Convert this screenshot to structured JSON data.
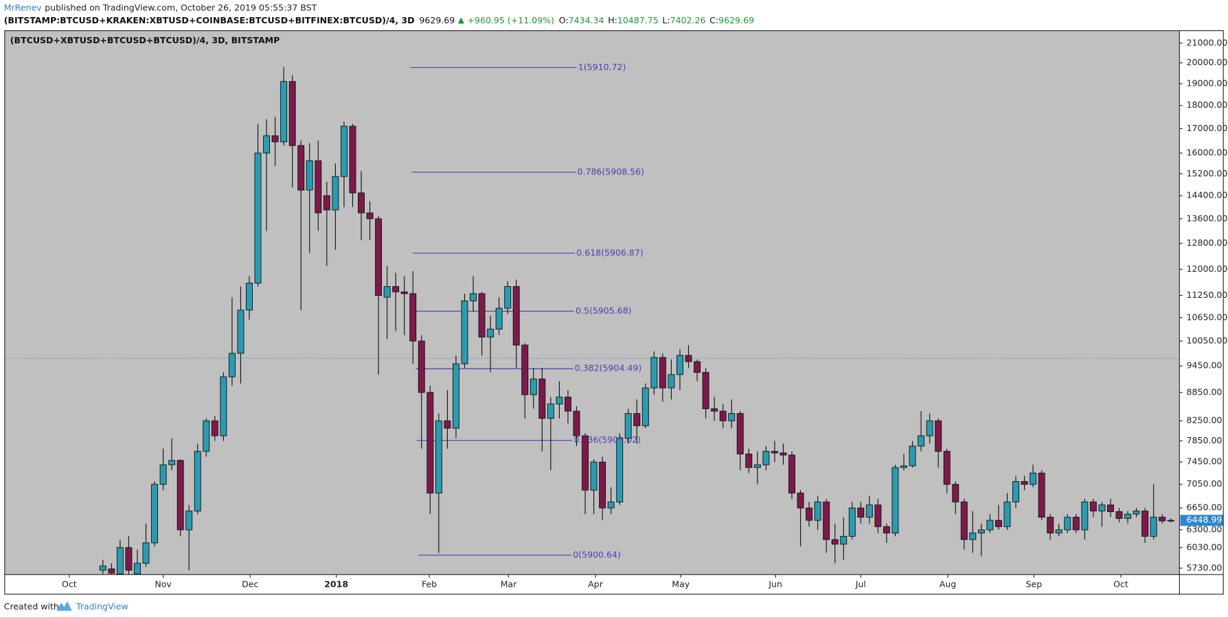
{
  "header": {
    "author": "MrRenev",
    "published": "published on TradingView.com, October 26, 2019 05:55:37 BST",
    "symbol": "(BITSTAMP:BTCUSD+KRAKEN:XBTUSD+COINBASE:BTCUSD+BITFINEX:BTCUSD)/4, 3D",
    "last": 9629.69,
    "change": "+960.95 (+11.09%)",
    "o_label": "O:",
    "open": 7434.34,
    "h_label": "H:",
    "high": 10487.75,
    "l_label": "L:",
    "low": 7402.26,
    "c_label": "C:",
    "close": 9629.69
  },
  "chart_data": {
    "type": "candlestick",
    "title": "(BTCUSD+XBTUSD+BTCUSD+BTCUSD)/4, 3D, BITSTAMP",
    "log_scale": true,
    "grid": false,
    "up_color": "#2a9bb0",
    "down_color": "#7d1a4b",
    "candles": {
      "open": [
        5700,
        5720,
        5650,
        6030,
        5650,
        5800,
        6100,
        7050,
        7400,
        7480,
        6300,
        6600,
        7650,
        8250,
        7950,
        9200,
        9750,
        10850,
        11600,
        16000,
        16700,
        16450,
        19100,
        16300,
        14600,
        15700,
        14400,
        13900,
        15100,
        17100,
        14500,
        13800,
        13600,
        11200,
        11500,
        11350,
        11300,
        10050,
        8850,
        6900,
        8250,
        8100,
        9500,
        11100,
        11300,
        10150,
        10350,
        10900,
        11500,
        9950,
        8800,
        9150,
        8300,
        8600,
        8750,
        8450,
        7950,
        6950,
        7450,
        6650,
        6750,
        7900,
        8400,
        8150,
        8950,
        9650,
        8950,
        9250,
        9700,
        9550,
        9300,
        8500,
        8450,
        8250,
        8400,
        7600,
        7350,
        7400,
        7650,
        7620,
        7580,
        6900,
        6650,
        6450,
        6750,
        6150,
        6080,
        6200,
        6650,
        6500,
        6700,
        6350,
        6250,
        7350,
        7380,
        7750,
        7950,
        8250,
        7650,
        7050,
        6750,
        6150,
        6250,
        6300,
        6450,
        6350,
        6750,
        7100,
        7050,
        7250,
        6500,
        6250,
        6300,
        6500,
        6300,
        6750,
        6600,
        6700,
        6590,
        6480,
        6550,
        6600,
        6200,
        6500,
        6450
      ],
      "high": [
        5850,
        5800,
        6150,
        6200,
        6000,
        6400,
        7100,
        7700,
        7900,
        7500,
        6700,
        7800,
        8300,
        8350,
        9300,
        11200,
        11500,
        11800,
        17200,
        17400,
        17500,
        19800,
        19400,
        16500,
        16400,
        16500,
        14900,
        15600,
        17300,
        17200,
        15300,
        14200,
        13700,
        12100,
        11900,
        11800,
        11950,
        10200,
        9000,
        8400,
        8900,
        9700,
        11300,
        11800,
        11350,
        10700,
        11200,
        11650,
        11700,
        10000,
        9400,
        9400,
        8750,
        9100,
        8900,
        8550,
        8000,
        7500,
        7550,
        7000,
        8000,
        8500,
        8700,
        9050,
        9800,
        9750,
        9600,
        9850,
        9950,
        9600,
        9400,
        8750,
        8600,
        8700,
        8450,
        7700,
        7650,
        7750,
        7850,
        7800,
        7650,
        6950,
        6750,
        6850,
        6800,
        6400,
        6500,
        6750,
        6750,
        6850,
        6800,
        6400,
        7400,
        7600,
        7850,
        8450,
        8400,
        8300,
        7700,
        7100,
        6800,
        6600,
        6400,
        6550,
        6700,
        6900,
        7200,
        7200,
        7400,
        7300,
        6550,
        6400,
        6550,
        6550,
        6800,
        6800,
        6750,
        6800,
        6650,
        6600,
        6650,
        6650,
        7050,
        6550,
        6480
      ],
      "low": [
        5650,
        5600,
        5600,
        5600,
        5550,
        5750,
        6050,
        6950,
        7300,
        6200,
        5700,
        6550,
        7550,
        7850,
        7850,
        9000,
        9050,
        10600,
        11500,
        13200,
        15500,
        16300,
        14700,
        10850,
        12500,
        13200,
        12100,
        12600,
        14000,
        14000,
        12900,
        12900,
        9250,
        10100,
        10300,
        10200,
        9500,
        7700,
        6550,
        5950,
        7700,
        7900,
        9400,
        10800,
        9700,
        9300,
        10200,
        10750,
        9400,
        8300,
        8500,
        7650,
        7300,
        8300,
        8200,
        7750,
        6550,
        6550,
        6450,
        6550,
        6700,
        7800,
        7800,
        8100,
        8800,
        8650,
        8700,
        8900,
        9400,
        9100,
        8300,
        8250,
        8100,
        8100,
        7300,
        7250,
        7050,
        7300,
        7450,
        7400,
        6800,
        6050,
        6350,
        6300,
        5950,
        5800,
        5850,
        6150,
        6400,
        6400,
        6250,
        6100,
        6200,
        7300,
        7350,
        7650,
        7800,
        7350,
        6900,
        6550,
        6000,
        5950,
        5900,
        6250,
        6300,
        6300,
        6650,
        6950,
        7000,
        6450,
        6150,
        6200,
        6250,
        6250,
        6150,
        6500,
        6350,
        6500,
        6420,
        6400,
        6500,
        6100,
        6150,
        6400,
        6420
      ],
      "close": [
        5760,
        5660,
        6030,
        5700,
        5800,
        6100,
        7050,
        7400,
        7480,
        6300,
        6600,
        7650,
        8250,
        7950,
        9200,
        9750,
        10850,
        11600,
        16000,
        16700,
        16450,
        19100,
        16300,
        14600,
        15700,
        13800,
        13900,
        15100,
        17100,
        14500,
        13800,
        13600,
        11250,
        11500,
        11350,
        11300,
        10050,
        8850,
        6900,
        8250,
        8100,
        9500,
        11100,
        11300,
        10150,
        10350,
        10900,
        11500,
        9950,
        8800,
        9150,
        8300,
        8600,
        8750,
        8450,
        7950,
        6950,
        7450,
        6650,
        6750,
        7900,
        8400,
        8150,
        8950,
        9650,
        8950,
        9250,
        9700,
        9550,
        9300,
        8500,
        8450,
        8250,
        8400,
        7600,
        7350,
        7400,
        7650,
        7620,
        7580,
        6900,
        6650,
        6450,
        6750,
        6150,
        6080,
        6200,
        6650,
        6500,
        6700,
        6350,
        6250,
        7350,
        7380,
        7750,
        7950,
        8250,
        7650,
        7050,
        6750,
        6150,
        6250,
        6300,
        6450,
        6350,
        6750,
        7100,
        7050,
        7250,
        6500,
        6250,
        6300,
        6500,
        6300,
        6750,
        6600,
        6700,
        6590,
        6480,
        6550,
        6600,
        6200,
        6500,
        6440,
        6440
      ]
    },
    "xlim": [
      -11.4,
      125
    ],
    "xticks": [
      {
        "value": -3.9,
        "label": "Oct"
      },
      {
        "value": 7,
        "label": "Nov"
      },
      {
        "value": 17.1,
        "label": "Dec"
      },
      {
        "value": 27.1,
        "label": "2018"
      },
      {
        "value": 37.9,
        "label": "Feb"
      },
      {
        "value": 47.1,
        "label": "Mar"
      },
      {
        "value": 57.2,
        "label": "Apr"
      },
      {
        "value": 67.1,
        "label": "May"
      },
      {
        "value": 78.1,
        "label": "Jun"
      },
      {
        "value": 88,
        "label": "Jul"
      },
      {
        "value": 98.1,
        "label": "Aug"
      },
      {
        "value": 108.1,
        "label": "Sep"
      },
      {
        "value": 118.2,
        "label": "Oct"
      }
    ],
    "ylim": [
      5640,
      21660
    ],
    "yticks": [
      {
        "value": 21000,
        "label": "21000.00"
      },
      {
        "value": 20000,
        "label": "20000.00"
      },
      {
        "value": 19000,
        "label": "19000.00"
      },
      {
        "value": 18000,
        "label": "18000.00"
      },
      {
        "value": 17000,
        "label": "17000.00"
      },
      {
        "value": 16000,
        "label": "16000.00"
      },
      {
        "value": 15200,
        "label": "15200.00"
      },
      {
        "value": 14400,
        "label": "14400.00"
      },
      {
        "value": 13600,
        "label": "13600.00"
      },
      {
        "value": 12800,
        "label": "12800.00"
      },
      {
        "value": 12000,
        "label": "12000.00"
      },
      {
        "value": 11250,
        "label": "11250.00"
      },
      {
        "value": 10650,
        "label": "10650.00"
      },
      {
        "value": 10050,
        "label": "10050.00"
      },
      {
        "value": 9450,
        "label": "9450.00"
      },
      {
        "value": 8850,
        "label": "8850.00"
      },
      {
        "value": 8250,
        "label": "8250.00"
      },
      {
        "value": 7850,
        "label": "7850.00"
      },
      {
        "value": 7450,
        "label": "7450.00"
      },
      {
        "value": 7050,
        "label": "7050.00"
      },
      {
        "value": 6650,
        "label": "6650.00"
      },
      {
        "value": 6300,
        "label": "6300.00"
      },
      {
        "value": 6030,
        "label": "6030.00"
      },
      {
        "value": 5730,
        "label": "5730.00"
      }
    ],
    "last_price": 6448.99,
    "fib_color": "#4a3fb0",
    "fib_levels": [
      {
        "label": "1(5910.72)",
        "price": 19770
      },
      {
        "label": "0.786(5908.56)",
        "price": 15260
      },
      {
        "label": "0.618(5906.87)",
        "price": 12490
      },
      {
        "label": "0.5(5905.68)",
        "price": 10820
      },
      {
        "label": "0.382(5904.49)",
        "price": 9385
      },
      {
        "label": "0.236(5903.02)",
        "price": 7860
      },
      {
        "label": "0(5900.64)",
        "price": 5917
      }
    ]
  },
  "footer": {
    "created": "Created with",
    "brand": "TradingView"
  }
}
